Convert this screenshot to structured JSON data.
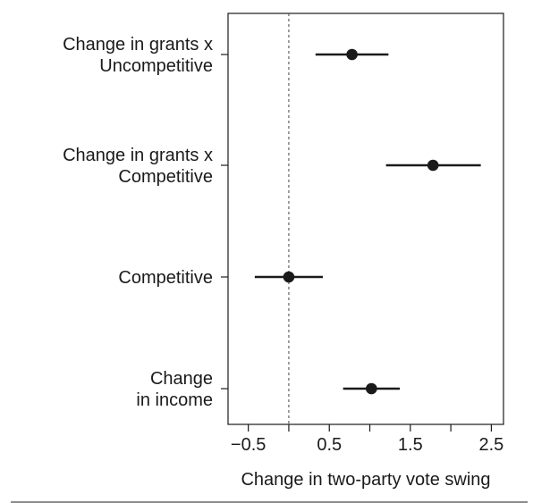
{
  "chart_data": {
    "type": "scatter",
    "title": "",
    "xlabel": "Change in two-party vote swing",
    "ylabel": "",
    "xlim": [
      -0.75,
      2.65
    ],
    "x_ticks": [
      -0.5,
      0.5,
      1.5,
      2.5
    ],
    "x_tick_labels": [
      "−0.5",
      "0.5",
      "1.5",
      "2.5"
    ],
    "reference_line": 0,
    "grid": false,
    "rows": [
      {
        "label": [
          "Change in grants x",
          "Uncompetitive"
        ],
        "estimate": 0.78,
        "lower": 0.33,
        "upper": 1.23
      },
      {
        "label": [
          "Change in grants x",
          "Competitive"
        ],
        "estimate": 1.78,
        "lower": 1.2,
        "upper": 2.37
      },
      {
        "label": [
          "Competitive"
        ],
        "estimate": 0.0,
        "lower": -0.42,
        "upper": 0.42
      },
      {
        "label": [
          "Change",
          "in income"
        ],
        "estimate": 1.02,
        "lower": 0.67,
        "upper": 1.37
      }
    ]
  }
}
